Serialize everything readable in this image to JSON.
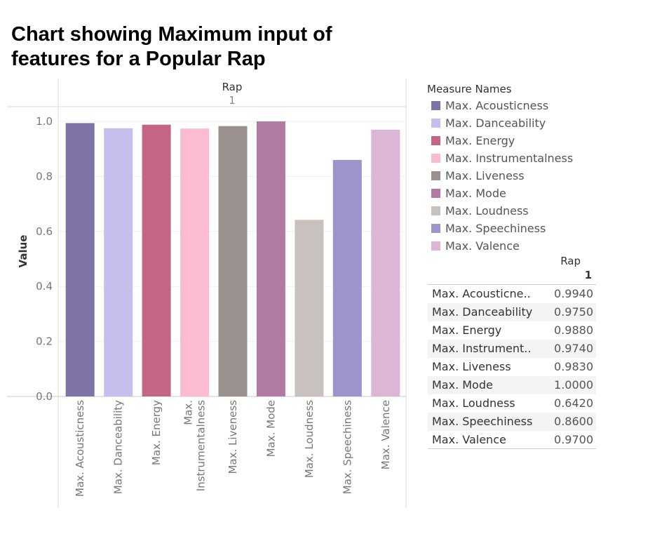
{
  "title": "Chart showing Maximum input of features for a Popular Rap",
  "chart_data": {
    "type": "bar",
    "column_header": "Rap",
    "column_subheader": "1",
    "ylabel": "Value",
    "ylim": [
      0,
      1.0
    ],
    "yticks": [
      "0.0",
      "0.2",
      "0.4",
      "0.6",
      "0.8",
      "1.0"
    ],
    "categories": [
      "Max. Acousticness",
      "Max. Danceability",
      "Max. Energy",
      "Max. Instrumentalness",
      "Max. Liveness",
      "Max. Mode",
      "Max. Loudness",
      "Max. Speechiness",
      "Max. Valence"
    ],
    "category_labels": [
      [
        "Max. Acousticness"
      ],
      [
        "Max. Danceability"
      ],
      [
        "Max. Energy"
      ],
      [
        "Max.",
        "Instrumentalness"
      ],
      [
        "Max. Liveness"
      ],
      [
        "Max. Mode"
      ],
      [
        "Max. Loudness"
      ],
      [
        "Max. Speechiness"
      ],
      [
        "Max. Valence"
      ]
    ],
    "values": [
      0.994,
      0.975,
      0.988,
      0.974,
      0.983,
      1.0,
      0.642,
      0.86,
      0.97
    ],
    "colors": [
      "#8073a8",
      "#c5bfee",
      "#c36585",
      "#fbbcd2",
      "#9a918e",
      "#b07aa2",
      "#c8c1bd",
      "#9e94cb",
      "#dcb6d4"
    ],
    "grid": true
  },
  "legend": {
    "title": "Measure Names",
    "items": [
      "Max. Acousticness",
      "Max. Danceability",
      "Max. Energy",
      "Max. Instrumentalness",
      "Max. Liveness",
      "Max. Mode",
      "Max. Loudness",
      "Max. Speechiness",
      "Max. Valence"
    ],
    "colors": [
      "#8073a8",
      "#c5bfee",
      "#c36585",
      "#fbbcd2",
      "#9a918e",
      "#b07aa2",
      "#c8c1bd",
      "#9e94cb",
      "#dcb6d4"
    ]
  },
  "table": {
    "header": "Rap",
    "subheader": "1",
    "rows": [
      {
        "name": "Max. Acousticne..",
        "value": "0.9940"
      },
      {
        "name": "Max. Danceability",
        "value": "0.9750"
      },
      {
        "name": "Max. Energy",
        "value": "0.9880"
      },
      {
        "name": "Max. Instrument..",
        "value": "0.9740"
      },
      {
        "name": "Max. Liveness",
        "value": "0.9830"
      },
      {
        "name": "Max. Mode",
        "value": "1.0000"
      },
      {
        "name": "Max. Loudness",
        "value": "0.6420"
      },
      {
        "name": "Max. Speechiness",
        "value": "0.8600"
      },
      {
        "name": "Max. Valence",
        "value": "0.9700"
      }
    ]
  }
}
